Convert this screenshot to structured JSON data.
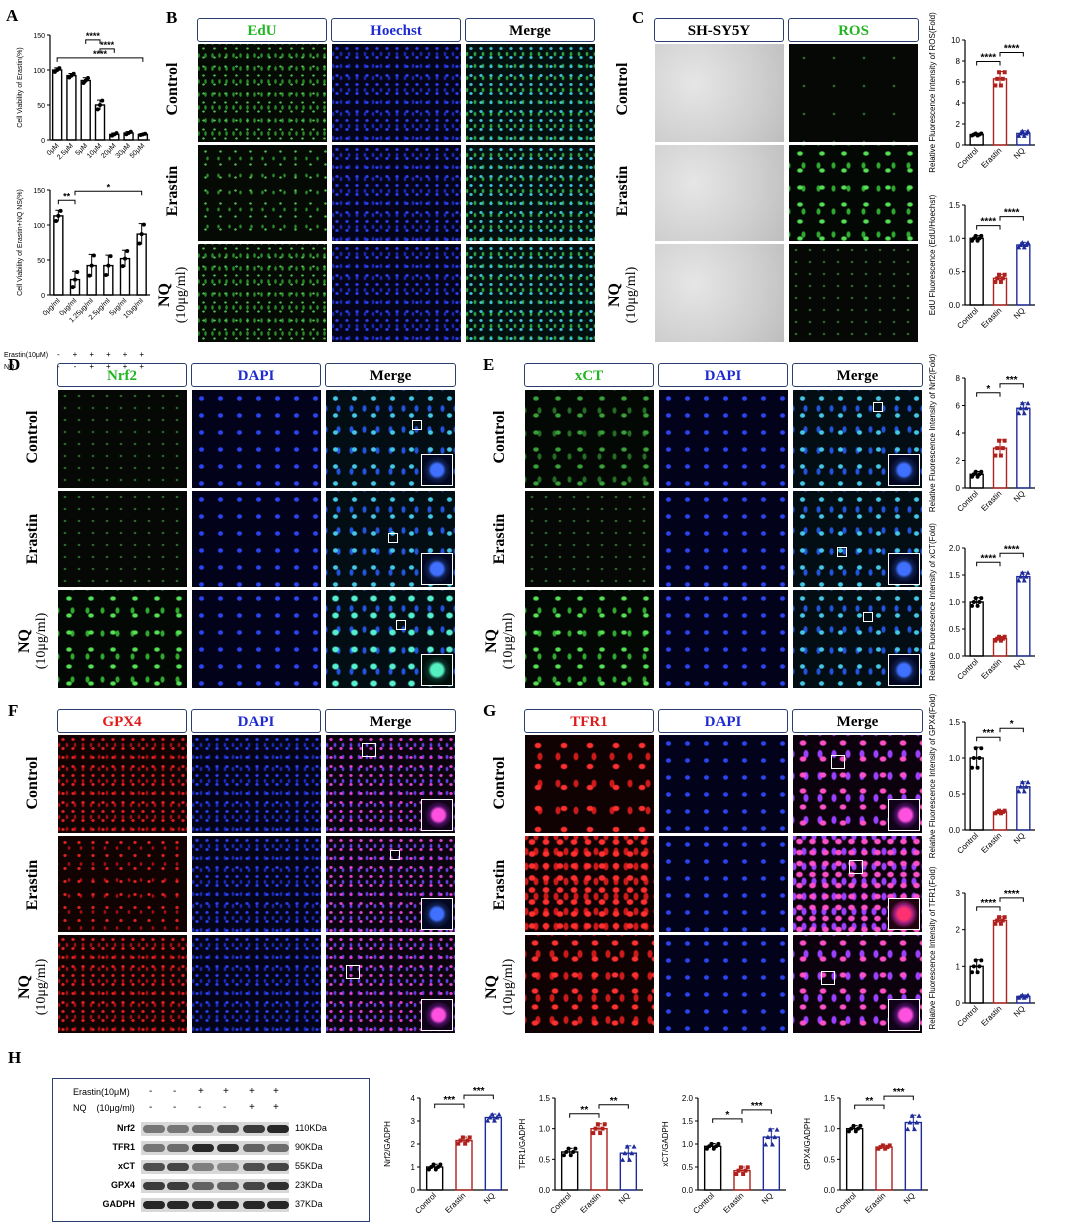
{
  "panel_labels": {
    "A": "A",
    "B": "B",
    "C": "C",
    "D": "D",
    "E": "E",
    "F": "F",
    "G": "G",
    "H": "H"
  },
  "conditions": {
    "control": "Control",
    "erastin": "Erastin",
    "nq": "NQ",
    "nq_sub": "(10μg/ml)"
  },
  "panel_b_headers": [
    "EdU",
    "Hoechst",
    "Merge"
  ],
  "panel_c_headers": [
    "SH-SY5Y",
    "ROS"
  ],
  "panel_d_headers": [
    "Nrf2",
    "DAPI",
    "Merge"
  ],
  "panel_e_headers": [
    "xCT",
    "DAPI",
    "Merge"
  ],
  "panel_f_headers": [
    "GPX4",
    "DAPI",
    "Merge"
  ],
  "panel_g_headers": [
    "TFR1",
    "DAPI",
    "Merge"
  ],
  "colors": {
    "green": "#22b422",
    "blue": "#1f2bd0",
    "red": "#e01919",
    "bar_control": "#000000",
    "bar_erastin": "#b0201c",
    "bar_nq": "#1e2b9a",
    "frame": "#2a3f6e"
  },
  "western": {
    "treat_labels": [
      "Erastin(10μM)",
      "NQ    (10μg/ml)"
    ],
    "erastin_signs": [
      "-",
      "-",
      "+",
      "+",
      "+",
      "+"
    ],
    "nq_signs": [
      "-",
      "-",
      "-",
      "-",
      "+",
      "+"
    ],
    "rows": [
      {
        "protein": "Nrf2",
        "size": "110KDa"
      },
      {
        "protein": "TFR1",
        "size": "90KDa"
      },
      {
        "protein": "xCT",
        "size": "55KDa"
      },
      {
        "protein": "GPX4",
        "size": "23KDa"
      },
      {
        "protein": "GADPH",
        "size": "37KDa"
      }
    ]
  },
  "chart_data": [
    {
      "id": "A1",
      "type": "bar",
      "ylabel": "Cell Viability of Erastin(%)",
      "categories": [
        "0μM",
        "2.5μM",
        "5μM",
        "10μM",
        "20μM",
        "30μM",
        "50μM"
      ],
      "values": [
        100,
        92,
        85,
        50,
        8,
        10,
        8
      ],
      "errors": [
        3,
        3,
        4,
        7,
        2,
        2,
        1
      ],
      "ylim": [
        0,
        150
      ],
      "yticks": [
        0,
        50,
        100,
        150
      ],
      "significance": [
        {
          "from": 0,
          "to": 6,
          "label": "****"
        },
        {
          "from": 3,
          "to": 4,
          "label": "****"
        },
        {
          "from": 2,
          "to": 3,
          "label": "****"
        }
      ]
    },
    {
      "id": "A2",
      "type": "bar",
      "ylabel": "Cell Viability of Erastin+NQ NS(%)",
      "categories": [
        "0μg/ml",
        "0μg/ml",
        "1.25μg/ml",
        "2.5μg/ml",
        "5μg/ml",
        "10μg/ml"
      ],
      "values": [
        113,
        22,
        42,
        42,
        52,
        87
      ],
      "errors": [
        8,
        12,
        16,
        15,
        12,
        15
      ],
      "ylim": [
        0,
        150
      ],
      "yticks": [
        0,
        50,
        100,
        150
      ],
      "significance": [
        {
          "from": 0,
          "to": 1,
          "label": "**"
        },
        {
          "from": 1,
          "to": 5,
          "label": "*"
        }
      ],
      "treatment_rows": [
        {
          "label": "Erastin(10μM)",
          "signs": [
            "-",
            "+",
            "+",
            "+",
            "+",
            "+"
          ]
        },
        {
          "label": "NQ",
          "signs": [
            "-",
            "-",
            "+",
            "+",
            "+",
            "+"
          ]
        }
      ]
    },
    {
      "id": "C1",
      "type": "bar",
      "ylabel": "Relative Fluorescence  Intensity of ROS(Fold)",
      "categories": [
        "Control",
        "Erastin",
        "NQ"
      ],
      "values": [
        1.0,
        6.3,
        1.1
      ],
      "errors": [
        0.1,
        0.7,
        0.25
      ],
      "ylim": [
        0,
        10
      ],
      "yticks": [
        0,
        2,
        4,
        6,
        8,
        10
      ],
      "significance": [
        {
          "from": 0,
          "to": 1,
          "label": "****"
        },
        {
          "from": 1,
          "to": 2,
          "label": "****"
        }
      ]
    },
    {
      "id": "C2",
      "type": "bar",
      "ylabel": "EdU Fluorescence (EdU/Hoechst)",
      "categories": [
        "Control",
        "Erastin",
        "NQ"
      ],
      "values": [
        1.0,
        0.4,
        0.9
      ],
      "errors": [
        0.04,
        0.06,
        0.04
      ],
      "ylim": [
        0,
        1.5
      ],
      "yticks": [
        0.0,
        0.5,
        1.0,
        1.5
      ],
      "significance": [
        {
          "from": 0,
          "to": 1,
          "label": "****"
        },
        {
          "from": 1,
          "to": 2,
          "label": "****"
        }
      ]
    },
    {
      "id": "E1",
      "type": "bar",
      "ylabel": "Relative Fluorescence  Intensity of Nrf2(Fold)",
      "categories": [
        "Control",
        "Erastin",
        "NQ"
      ],
      "values": [
        1.0,
        2.9,
        5.8
      ],
      "errors": [
        0.2,
        0.6,
        0.4
      ],
      "ylim": [
        0,
        8
      ],
      "yticks": [
        0,
        2,
        4,
        6,
        8
      ],
      "significance": [
        {
          "from": 0,
          "to": 1,
          "label": "*"
        },
        {
          "from": 1,
          "to": 2,
          "label": "***"
        }
      ]
    },
    {
      "id": "E2",
      "type": "bar",
      "ylabel": "Relative Fluorescence  Intensity of xCT(Fold)",
      "categories": [
        "Control",
        "Erastin",
        "NQ"
      ],
      "values": [
        1.0,
        0.32,
        1.47
      ],
      "errors": [
        0.08,
        0.04,
        0.08
      ],
      "ylim": [
        0,
        2.0
      ],
      "yticks": [
        0.0,
        0.5,
        1.0,
        1.5,
        2.0
      ],
      "significance": [
        {
          "from": 0,
          "to": 1,
          "label": "****"
        },
        {
          "from": 1,
          "to": 2,
          "label": "****"
        }
      ]
    },
    {
      "id": "G1",
      "type": "bar",
      "ylabel": "Relative Fluorescence  Intensity of GPX4(Fold)",
      "categories": [
        "Control",
        "Erastin",
        "NQ"
      ],
      "values": [
        1.0,
        0.25,
        0.6
      ],
      "errors": [
        0.15,
        0.02,
        0.07
      ],
      "ylim": [
        0,
        1.5
      ],
      "yticks": [
        0.0,
        0.5,
        1.0,
        1.5
      ],
      "significance": [
        {
          "from": 0,
          "to": 1,
          "label": "***"
        },
        {
          "from": 1,
          "to": 2,
          "label": "*"
        }
      ]
    },
    {
      "id": "G2",
      "type": "bar",
      "ylabel": "Relative Fluorescence  Intensity of TFR1(Fold)",
      "categories": [
        "Control",
        "Erastin",
        "NQ"
      ],
      "values": [
        1.0,
        2.25,
        0.18
      ],
      "errors": [
        0.18,
        0.1,
        0.04
      ],
      "ylim": [
        0,
        3
      ],
      "yticks": [
        0,
        1,
        2,
        3
      ],
      "significance": [
        {
          "from": 0,
          "to": 1,
          "label": "****"
        },
        {
          "from": 1,
          "to": 2,
          "label": "****"
        }
      ]
    },
    {
      "id": "H1",
      "type": "bar",
      "ylabel": "Nrf2/GADPH",
      "categories": [
        "Control",
        "Erastin",
        "NQ"
      ],
      "values": [
        1.0,
        2.15,
        3.15
      ],
      "errors": [
        0.12,
        0.15,
        0.15
      ],
      "ylim": [
        0,
        4
      ],
      "yticks": [
        0,
        1,
        2,
        3,
        4
      ],
      "significance": [
        {
          "from": 0,
          "to": 1,
          "label": "***"
        },
        {
          "from": 1,
          "to": 2,
          "label": "***"
        }
      ]
    },
    {
      "id": "H2",
      "type": "bar",
      "ylabel": "TFR1/GADPH",
      "categories": [
        "Control",
        "Erastin",
        "NQ"
      ],
      "values": [
        0.62,
        1.0,
        0.6
      ],
      "errors": [
        0.06,
        0.08,
        0.12
      ],
      "ylim": [
        0,
        1.5
      ],
      "yticks": [
        0.0,
        0.5,
        1.0,
        1.5
      ],
      "significance": [
        {
          "from": 0,
          "to": 1,
          "label": "**"
        },
        {
          "from": 1,
          "to": 2,
          "label": "**"
        }
      ]
    },
    {
      "id": "H3",
      "type": "bar",
      "ylabel": "xCT/GADPH",
      "categories": [
        "Control",
        "Erastin",
        "NQ"
      ],
      "values": [
        0.95,
        0.42,
        1.15
      ],
      "errors": [
        0.06,
        0.08,
        0.18
      ],
      "ylim": [
        0,
        2.0
      ],
      "yticks": [
        0.0,
        0.5,
        1.0,
        1.5,
        2.0
      ],
      "significance": [
        {
          "from": 0,
          "to": 1,
          "label": "*"
        },
        {
          "from": 1,
          "to": 2,
          "label": "***"
        }
      ]
    },
    {
      "id": "H4",
      "type": "bar",
      "ylabel": "GPX4/GADPH",
      "categories": [
        "Control",
        "Erastin",
        "NQ"
      ],
      "values": [
        1.0,
        0.7,
        1.1
      ],
      "errors": [
        0.05,
        0.03,
        0.12
      ],
      "ylim": [
        0,
        1.5
      ],
      "yticks": [
        0.0,
        0.5,
        1.0,
        1.5
      ],
      "significance": [
        {
          "from": 0,
          "to": 1,
          "label": "**"
        },
        {
          "from": 1,
          "to": 2,
          "label": "***"
        }
      ]
    }
  ]
}
